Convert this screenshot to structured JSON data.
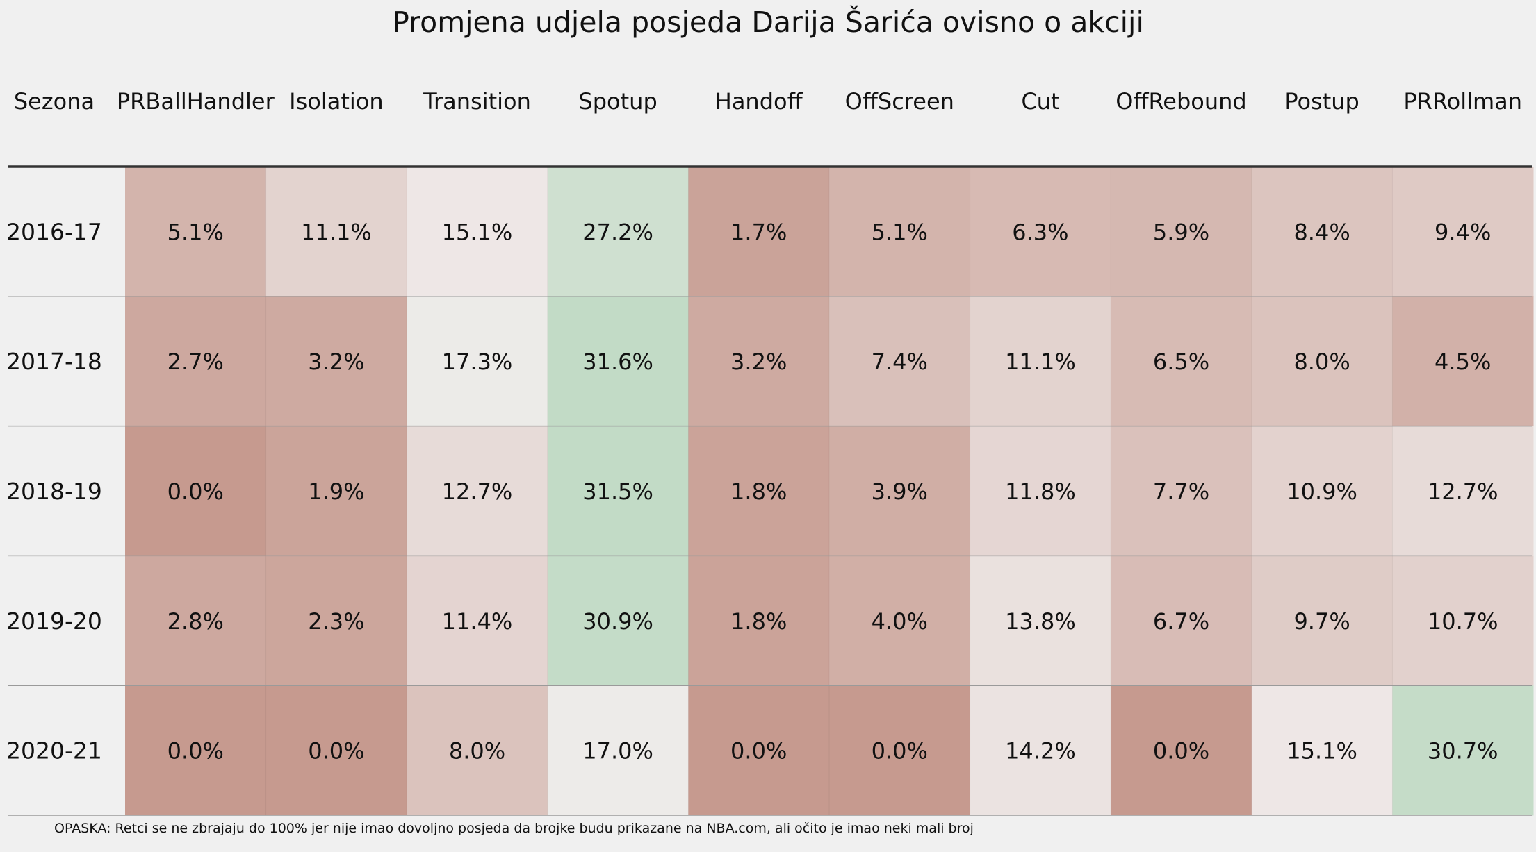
{
  "title": "Promjena udjela posjeda Darija Šarića ovisno o akciji",
  "note": "OPASKA: Retci se ne zbrajaju do 100% jer nije imao dovoljno posjeda da brojke budu prikazane na NBA.com, ali očito je imao neki mali broj",
  "colors": {
    "low": "#c69a8f",
    "mid": "#f0eceb",
    "high": "#c2dbc6",
    "background": "#f0f0f0",
    "header_line": "#333333",
    "row_line": "#9a9a9a"
  },
  "chart_data": {
    "type": "heatmap",
    "title": "Promjena udjela posjeda Darija Šarića ovisno o akciji",
    "row_header": "Sezona",
    "columns": [
      "PRBallHandler",
      "Isolation",
      "Transition",
      "Spotup",
      "Handoff",
      "OffScreen",
      "Cut",
      "OffRebound",
      "Postup",
      "PRRollman"
    ],
    "rows": [
      "2016-17",
      "2017-18",
      "2018-19",
      "2019-20",
      "2020-21"
    ],
    "values": [
      [
        5.1,
        11.1,
        15.1,
        27.2,
        1.7,
        5.1,
        6.3,
        5.9,
        8.4,
        9.4
      ],
      [
        2.7,
        3.2,
        17.3,
        31.6,
        3.2,
        7.4,
        11.1,
        6.5,
        8.0,
        4.5
      ],
      [
        0.0,
        1.9,
        12.7,
        31.5,
        1.8,
        3.9,
        11.8,
        7.7,
        10.9,
        12.7
      ],
      [
        2.8,
        2.3,
        11.4,
        30.9,
        1.8,
        4.0,
        13.8,
        6.7,
        9.7,
        10.7
      ],
      [
        0.0,
        0.0,
        8.0,
        17.0,
        0.0,
        0.0,
        14.2,
        0.0,
        15.1,
        30.7
      ]
    ],
    "labels": [
      [
        "5.1%",
        "11.1%",
        "15.1%",
        "27.2%",
        "1.7%",
        "5.1%",
        "6.3%",
        "5.9%",
        "8.4%",
        "9.4%"
      ],
      [
        "2.7%",
        "3.2%",
        "17.3%",
        "31.6%",
        "3.2%",
        "7.4%",
        "11.1%",
        "6.5%",
        "8.0%",
        "4.5%"
      ],
      [
        "0.0%",
        "1.9%",
        "12.7%",
        "31.5%",
        "1.8%",
        "3.9%",
        "11.8%",
        "7.7%",
        "10.9%",
        "12.7%"
      ],
      [
        "2.8%",
        "2.3%",
        "11.4%",
        "30.9%",
        "1.8%",
        "4.0%",
        "13.8%",
        "6.7%",
        "9.7%",
        "10.7%"
      ],
      [
        "0.0%",
        "0.0%",
        "8.0%",
        "17.0%",
        "0.0%",
        "0.0%",
        "14.2%",
        "0.0%",
        "15.1%",
        "30.7%"
      ]
    ],
    "unit": "%"
  }
}
